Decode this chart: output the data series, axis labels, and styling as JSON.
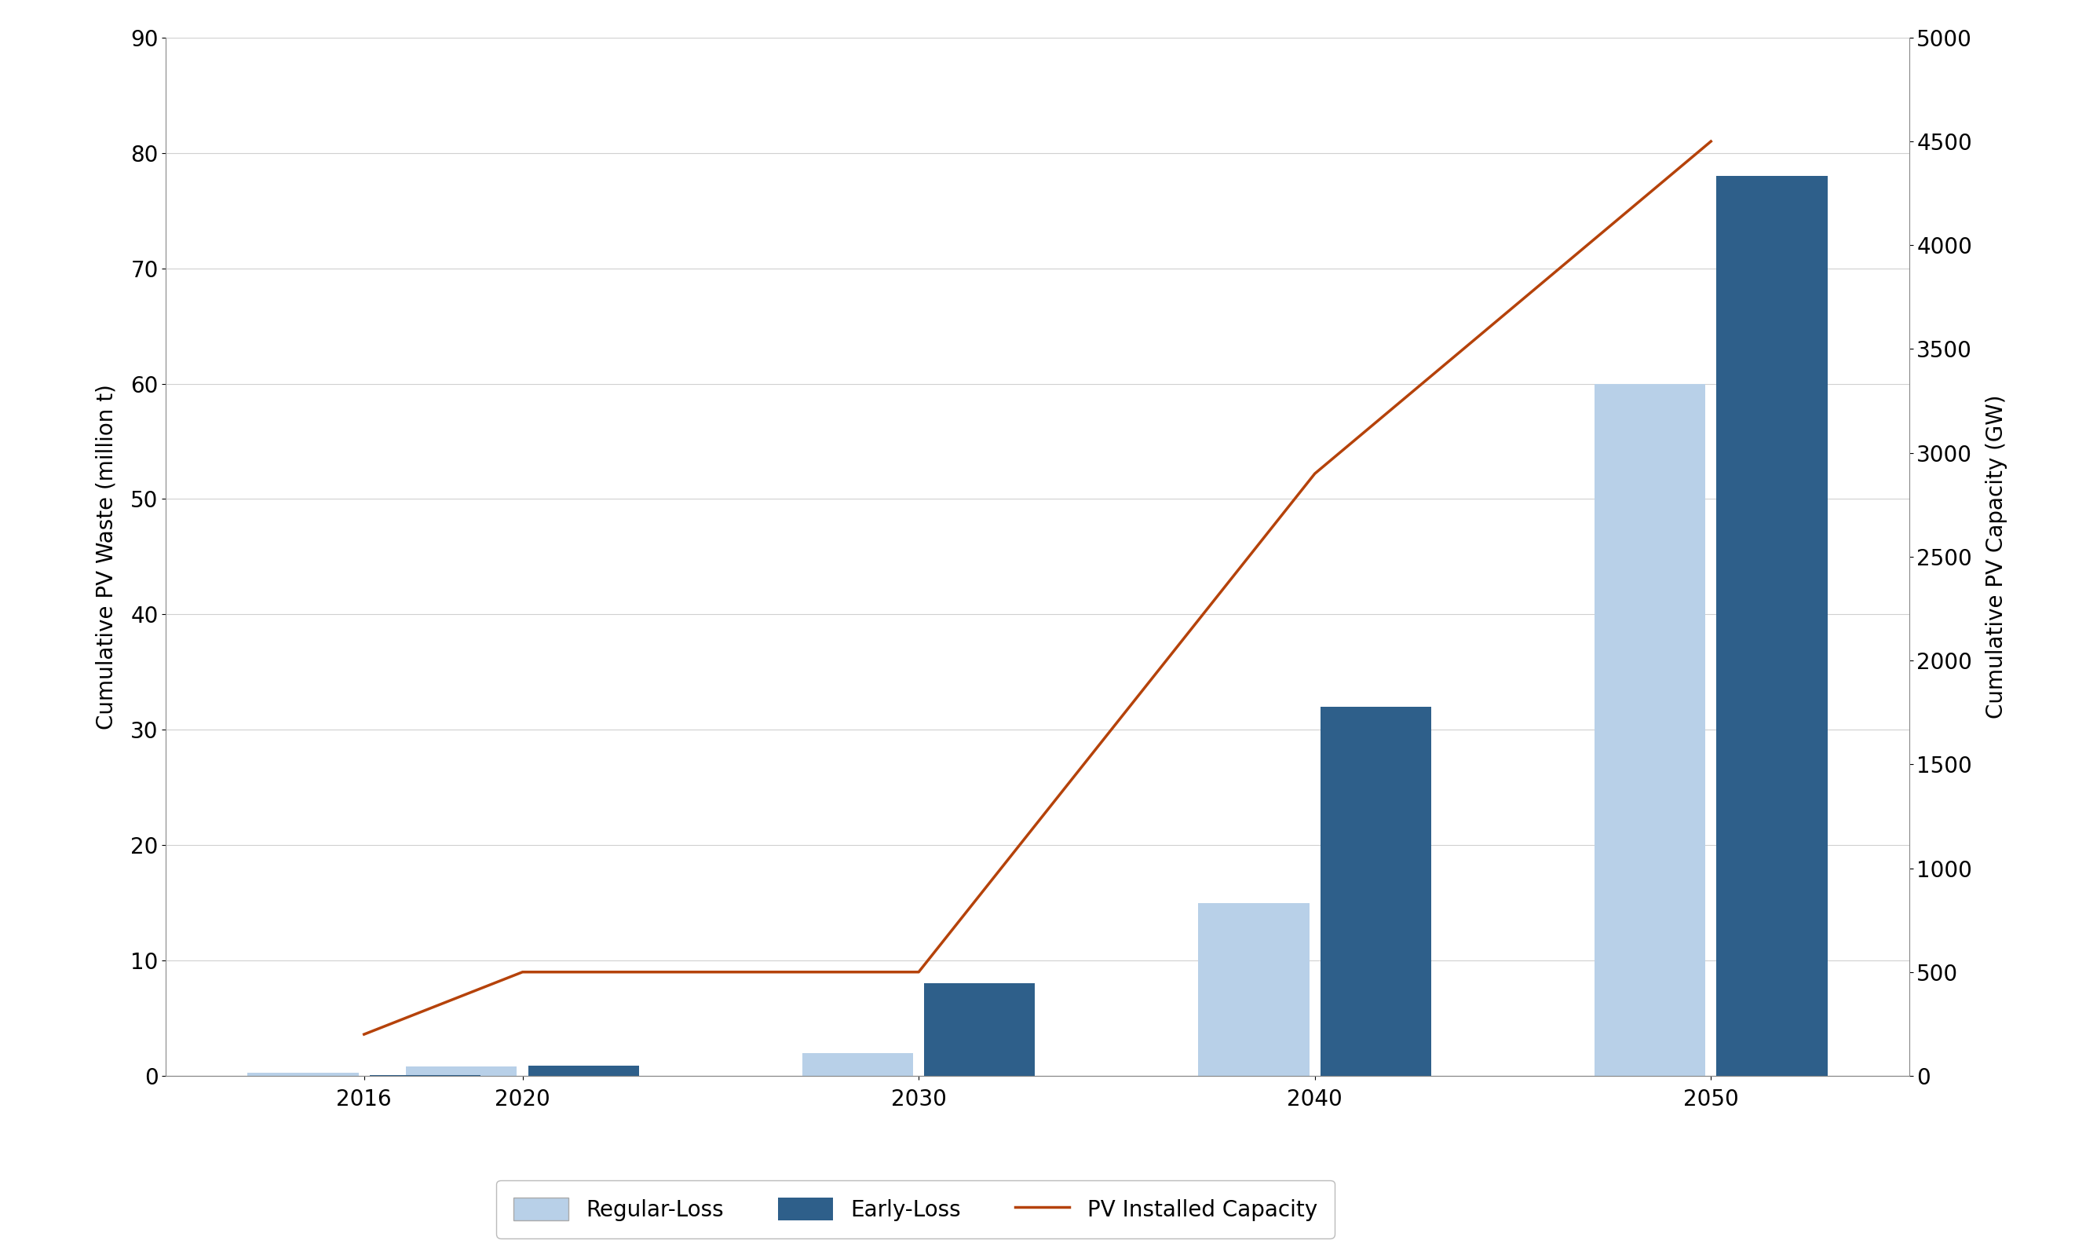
{
  "years": [
    2016,
    2020,
    2030,
    2040,
    2050
  ],
  "regular_loss": [
    0.3,
    0.8,
    2.0,
    15.0,
    60.0
  ],
  "early_loss": [
    0.05,
    0.9,
    8.0,
    32.0,
    78.0
  ],
  "pv_capacity": [
    200,
    500,
    500,
    2900,
    4500
  ],
  "bar_width": 2.8,
  "regular_loss_color": "#b8d0e8",
  "early_loss_color": "#2e5f8a",
  "pv_line_color": "#b5420a",
  "left_ylabel": "Cumulative PV Waste (million t)",
  "right_ylabel": "Cumulative PV Capacity (GW)",
  "left_ylim": [
    0,
    90
  ],
  "right_ylim": [
    0,
    5000
  ],
  "left_yticks": [
    0,
    10,
    20,
    30,
    40,
    50,
    60,
    70,
    80,
    90
  ],
  "right_yticks": [
    0,
    500,
    1000,
    1500,
    2000,
    2500,
    3000,
    3500,
    4000,
    4500,
    5000
  ],
  "grid_color": "#d0d0d0",
  "background_color": "#ffffff",
  "legend_labels": [
    "Regular-Loss",
    "Early-Loss",
    "PV Installed Capacity"
  ],
  "tick_fontsize": 20,
  "label_fontsize": 20,
  "legend_fontsize": 20,
  "xlim_left": 2011,
  "xlim_right": 2055
}
